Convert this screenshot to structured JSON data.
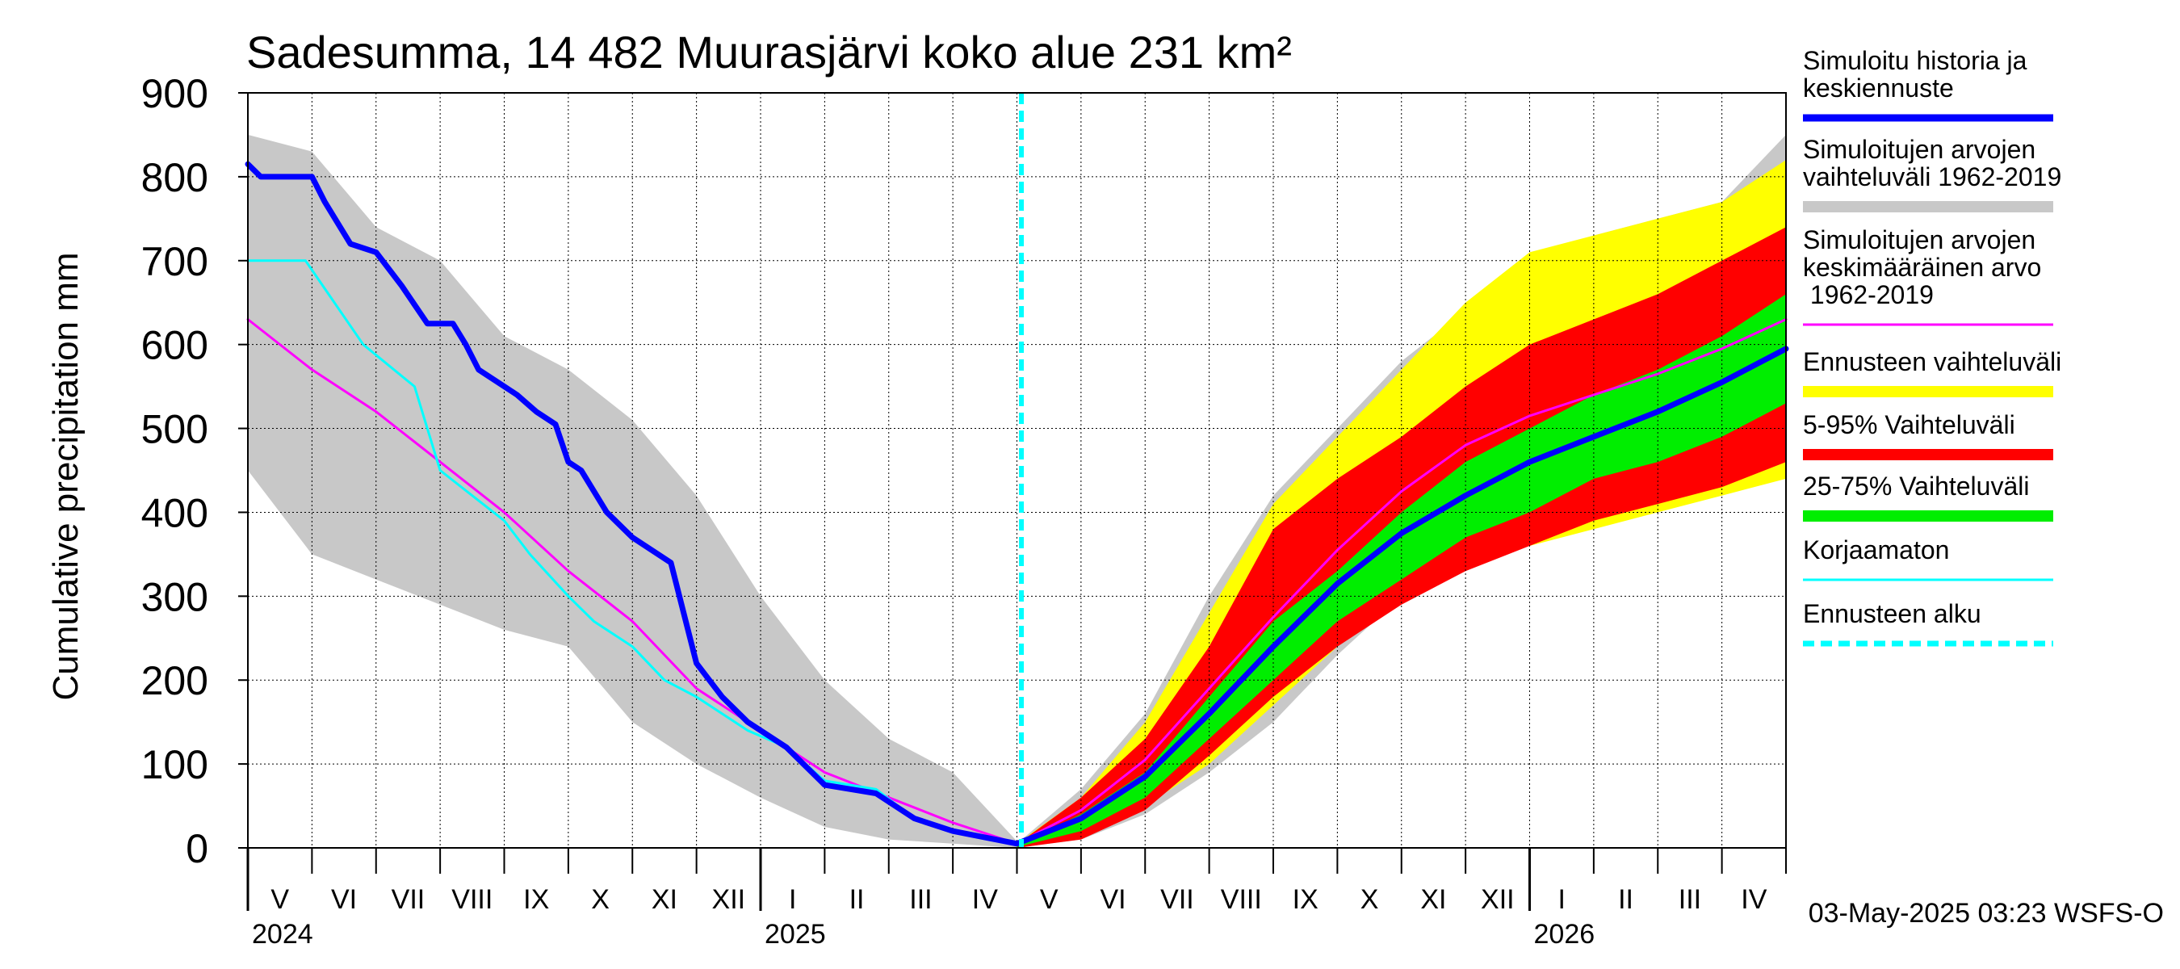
{
  "chart_data": {
    "type": "area",
    "title": "Sadesumma, 14 482 Muurasjärvi koko alue 231 km²",
    "ylabel": "Cumulative precipitation   mm",
    "xlabel": "",
    "ylim": [
      0,
      900
    ],
    "yticks": [
      0,
      100,
      200,
      300,
      400,
      500,
      600,
      700,
      800,
      900
    ],
    "x_unit": "months since 2024-05-01",
    "xlim": [
      0,
      24
    ],
    "month_labels": [
      "V",
      "VI",
      "VII",
      "VIII",
      "IX",
      "X",
      "XI",
      "XII",
      "I",
      "II",
      "III",
      "IV",
      "V",
      "VI",
      "VII",
      "VIII",
      "IX",
      "X",
      "XI",
      "XII",
      "I",
      "II",
      "III",
      "IV"
    ],
    "year_labels": [
      {
        "label": "2024",
        "month": 0
      },
      {
        "label": "2025",
        "month": 8
      },
      {
        "label": "2026",
        "month": 20
      }
    ],
    "grid": true,
    "forecast_start": 12.07,
    "timestamp": "03-May-2025 03:23 WSFS-O",
    "legend": [
      {
        "label": "Simuloitu historia ja keskiennuste",
        "color": "#0000ff",
        "style": "thick"
      },
      {
        "label": "Simuloitujen arvojen vaihteluväli 1962-2019",
        "color": "#c8c8c8",
        "style": "band"
      },
      {
        "label": "Simuloitujen arvojen keskimääräinen arvo   1962-2019",
        "color": "#ff00ff",
        "style": "thin"
      },
      {
        "label": "Ennusteen vaihteluväli",
        "color": "#ffff00",
        "style": "band"
      },
      {
        "label": "5-95% Vaihteluväli",
        "color": "#ff0000",
        "style": "band"
      },
      {
        "label": "25-75% Vaihteluväli",
        "color": "#00ee00",
        "style": "band"
      },
      {
        "label": "Korjaamaton",
        "color": "#00ffff",
        "style": "thin"
      },
      {
        "label": "Ennusteen alku",
        "color": "#00ffff",
        "style": "dashed"
      }
    ],
    "series": [
      {
        "name": "hist_range",
        "type": "band",
        "color": "#c8c8c8",
        "x": [
          0,
          1,
          2,
          3,
          4,
          5,
          6,
          7,
          8,
          9,
          10,
          11,
          12
        ],
        "upper": [
          850,
          830,
          740,
          700,
          610,
          570,
          510,
          420,
          300,
          200,
          130,
          90,
          8
        ],
        "lower": [
          450,
          350,
          320,
          290,
          260,
          240,
          150,
          100,
          60,
          25,
          10,
          5,
          0
        ]
      },
      {
        "name": "hist_range_future",
        "type": "band",
        "color": "#c8c8c8",
        "x": [
          12,
          13,
          14,
          15,
          16,
          17,
          18,
          19,
          20,
          21,
          22,
          23,
          24
        ],
        "upper": [
          5,
          70,
          160,
          300,
          420,
          500,
          580,
          640,
          700,
          730,
          750,
          770,
          850
        ],
        "lower": [
          0,
          10,
          40,
          90,
          150,
          230,
          300,
          340,
          360,
          390,
          410,
          430,
          440
        ]
      },
      {
        "name": "Ennusteen vaihteluväli",
        "type": "band",
        "color": "#ffff00",
        "x": [
          12,
          13,
          14,
          15,
          16,
          17,
          18,
          19,
          20,
          21,
          22,
          23,
          24
        ],
        "upper": [
          5,
          60,
          150,
          280,
          410,
          490,
          570,
          650,
          710,
          730,
          750,
          770,
          820
        ],
        "lower": [
          0,
          15,
          50,
          100,
          170,
          240,
          300,
          340,
          360,
          380,
          400,
          420,
          440
        ]
      },
      {
        "name": "5-95% Vaihteluväli",
        "type": "band",
        "color": "#ff0000",
        "x": [
          12,
          13,
          14,
          15,
          16,
          17,
          18,
          19,
          20,
          21,
          22,
          23,
          24
        ],
        "upper": [
          4,
          60,
          130,
          240,
          380,
          440,
          490,
          550,
          600,
          630,
          660,
          700,
          740
        ],
        "lower": [
          0,
          10,
          45,
          110,
          180,
          240,
          290,
          330,
          360,
          390,
          410,
          430,
          460
        ]
      },
      {
        "name": "25-75% Vaihteluväli",
        "type": "band",
        "color": "#00ee00",
        "x": [
          12,
          13,
          14,
          15,
          16,
          17,
          18,
          19,
          20,
          21,
          22,
          23,
          24
        ],
        "upper": [
          3,
          40,
          90,
          180,
          270,
          330,
          400,
          460,
          500,
          540,
          570,
          610,
          660
        ],
        "lower": [
          1,
          20,
          60,
          130,
          200,
          270,
          320,
          370,
          400,
          440,
          460,
          490,
          530
        ]
      },
      {
        "name": "Simuloitujen arvojen keskimääräinen arvo 1962-2019",
        "type": "line",
        "color": "#ff00ff",
        "width": 3,
        "x": [
          0,
          1,
          2,
          3,
          4,
          5,
          6,
          7,
          8,
          9,
          10,
          11,
          12,
          13,
          14,
          15,
          16,
          17,
          18,
          19,
          20,
          21,
          22,
          23,
          24
        ],
        "y": [
          630,
          570,
          520,
          460,
          400,
          330,
          270,
          190,
          140,
          90,
          60,
          30,
          5,
          45,
          105,
          190,
          275,
          355,
          425,
          480,
          515,
          540,
          565,
          595,
          630
        ]
      },
      {
        "name": "Korjaamaton",
        "type": "line",
        "color": "#00ffff",
        "width": 3,
        "x": [
          0,
          0.9,
          1.8,
          2.6,
          3.0,
          3.5,
          4.0,
          4.4,
          5.0,
          5.4,
          6.0,
          6.5,
          7.0,
          7.8,
          8.4,
          9.0,
          9.8,
          10.4,
          11.0,
          12.0
        ],
        "y": [
          700,
          700,
          600,
          550,
          450,
          420,
          390,
          350,
          300,
          270,
          240,
          200,
          180,
          140,
          120,
          80,
          70,
          35,
          20,
          5
        ]
      },
      {
        "name": "Simuloitu historia ja keskiennuste",
        "type": "line",
        "color": "#0000ff",
        "width": 7,
        "x": [
          0,
          0.2,
          1.0,
          1.2,
          1.6,
          2.0,
          2.4,
          2.8,
          3.2,
          3.4,
          3.6,
          4.0,
          4.2,
          4.5,
          4.8,
          5.0,
          5.2,
          5.6,
          6.0,
          6.3,
          6.6,
          7.0,
          7.4,
          7.8,
          8.4,
          9.0,
          9.8,
          10.4,
          11.0,
          12.0,
          13,
          14,
          15,
          16,
          17,
          18,
          19,
          20,
          21,
          22,
          23,
          24
        ],
        "y": [
          815,
          800,
          800,
          770,
          720,
          710,
          670,
          625,
          625,
          600,
          570,
          550,
          540,
          520,
          505,
          460,
          450,
          400,
          370,
          355,
          340,
          220,
          180,
          150,
          120,
          75,
          65,
          35,
          20,
          5,
          35,
          85,
          160,
          240,
          315,
          375,
          420,
          460,
          490,
          520,
          555,
          595
        ]
      }
    ]
  }
}
